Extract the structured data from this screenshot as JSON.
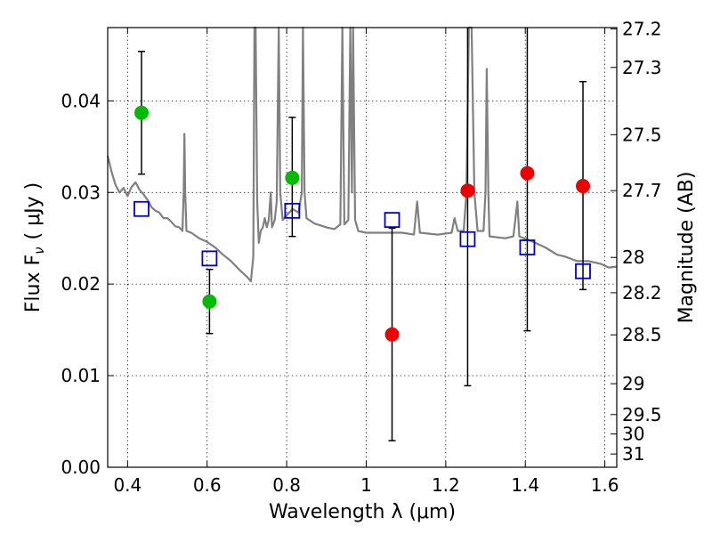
{
  "chart_data": {
    "type": "scatter",
    "xlabel": "Wavelength  λ (μm)",
    "ylabel": "Flux  F",
    "ylabel_sub": "ν",
    "ylabel_unit": "( μJy )",
    "y2label": "Magnitude (AB)",
    "xlim": [
      0.35,
      1.63
    ],
    "ylim": [
      0.0,
      0.048
    ],
    "grid": true,
    "x_ticks": [
      0.4,
      0.6,
      0.8,
      1.0,
      1.2,
      1.4,
      1.6
    ],
    "x_tick_labels": [
      "0.4",
      "0.6",
      "0.8",
      "1",
      "1.2",
      "1.4",
      "1.6"
    ],
    "y_ticks": [
      0.0,
      0.01,
      0.02,
      0.03,
      0.04
    ],
    "y_tick_labels": [
      "0.00",
      "0.01",
      "0.02",
      "0.03",
      "0.04"
    ],
    "mag_ticks": [
      27.2,
      27.3,
      27.5,
      27.7,
      28,
      28.2,
      28.5,
      29,
      29.5,
      30,
      31
    ],
    "mag_tick_labels": [
      "27.2",
      "27.3",
      "27.5",
      "27.7",
      "28",
      "28.2",
      "28.5",
      "29",
      "29.5",
      "30",
      "31"
    ],
    "colors": {
      "green": "#00bb00",
      "red": "#ee0000",
      "model_box": "#0000cc",
      "template": "#808080",
      "errorbar": "#000000"
    },
    "series": [
      {
        "marker": "green-circle",
        "points": [
          {
            "x": 0.435,
            "y": 0.0387,
            "ylo": 0.032,
            "yhi": 0.0454
          },
          {
            "x": 0.606,
            "y": 0.0181,
            "ylo": 0.0146,
            "yhi": 0.0216
          },
          {
            "x": 0.814,
            "y": 0.0316,
            "ylo": 0.0252,
            "yhi": 0.0382
          }
        ]
      },
      {
        "marker": "red-circle",
        "points": [
          {
            "x": 1.065,
            "y": 0.0145,
            "ylo": 0.0029,
            "yhi": 0.0261
          },
          {
            "x": 1.255,
            "y": 0.0302,
            "ylo": 0.0089,
            "yhi": 0.05
          },
          {
            "x": 1.405,
            "y": 0.0321,
            "ylo": 0.0149,
            "yhi": 0.05
          },
          {
            "x": 1.545,
            "y": 0.0307,
            "ylo": 0.0194,
            "yhi": 0.0421
          }
        ]
      },
      {
        "marker": "blue-square",
        "points": [
          {
            "x": 0.435,
            "y": 0.0282
          },
          {
            "x": 0.606,
            "y": 0.0228
          },
          {
            "x": 0.814,
            "y": 0.028
          },
          {
            "x": 1.065,
            "y": 0.027
          },
          {
            "x": 1.255,
            "y": 0.0249
          },
          {
            "x": 1.405,
            "y": 0.024
          },
          {
            "x": 1.545,
            "y": 0.0214
          }
        ]
      }
    ],
    "template_spectrum": [
      [
        0.35,
        0.034
      ],
      [
        0.36,
        0.0322
      ],
      [
        0.37,
        0.0308
      ],
      [
        0.38,
        0.03
      ],
      [
        0.39,
        0.0305
      ],
      [
        0.4,
        0.0296
      ],
      [
        0.41,
        0.0306
      ],
      [
        0.42,
        0.0311
      ],
      [
        0.43,
        0.0303
      ],
      [
        0.44,
        0.0298
      ],
      [
        0.45,
        0.0292
      ],
      [
        0.46,
        0.0284
      ],
      [
        0.47,
        0.028
      ],
      [
        0.48,
        0.0278
      ],
      [
        0.49,
        0.0272
      ],
      [
        0.5,
        0.0272
      ],
      [
        0.51,
        0.0268
      ],
      [
        0.52,
        0.0263
      ],
      [
        0.53,
        0.0262
      ],
      [
        0.538,
        0.0258
      ],
      [
        0.541,
        0.03
      ],
      [
        0.543,
        0.0364
      ],
      [
        0.545,
        0.03
      ],
      [
        0.548,
        0.0258
      ],
      [
        0.56,
        0.0256
      ],
      [
        0.58,
        0.025
      ],
      [
        0.6,
        0.0246
      ],
      [
        0.62,
        0.024
      ],
      [
        0.64,
        0.0232
      ],
      [
        0.66,
        0.0225
      ],
      [
        0.68,
        0.0216
      ],
      [
        0.7,
        0.0208
      ],
      [
        0.71,
        0.0203
      ],
      [
        0.716,
        0.023
      ],
      [
        0.719,
        0.0482
      ],
      [
        0.722,
        0.0482
      ],
      [
        0.726,
        0.029
      ],
      [
        0.73,
        0.0245
      ],
      [
        0.735,
        0.0258
      ],
      [
        0.74,
        0.0262
      ],
      [
        0.745,
        0.0272
      ],
      [
        0.75,
        0.0262
      ],
      [
        0.755,
        0.027
      ],
      [
        0.76,
        0.03
      ],
      [
        0.763,
        0.0262
      ],
      [
        0.77,
        0.027
      ],
      [
        0.775,
        0.029
      ],
      [
        0.78,
        0.048
      ],
      [
        0.784,
        0.03
      ],
      [
        0.79,
        0.027
      ],
      [
        0.8,
        0.0275
      ],
      [
        0.815,
        0.0282
      ],
      [
        0.83,
        0.0278
      ],
      [
        0.838,
        0.03
      ],
      [
        0.841,
        0.0482
      ],
      [
        0.845,
        0.03
      ],
      [
        0.85,
        0.0272
      ],
      [
        0.87,
        0.0266
      ],
      [
        0.9,
        0.0262
      ],
      [
        0.92,
        0.026
      ],
      [
        0.935,
        0.0265
      ],
      [
        0.94,
        0.0482
      ],
      [
        0.945,
        0.0265
      ],
      [
        0.955,
        0.027
      ],
      [
        0.96,
        0.0482
      ],
      [
        0.964,
        0.03
      ],
      [
        0.967,
        0.0482
      ],
      [
        0.972,
        0.027
      ],
      [
        0.98,
        0.0258
      ],
      [
        1.0,
        0.0256
      ],
      [
        1.05,
        0.0256
      ],
      [
        1.09,
        0.0256
      ],
      [
        1.12,
        0.0254
      ],
      [
        1.128,
        0.029
      ],
      [
        1.135,
        0.0256
      ],
      [
        1.18,
        0.0254
      ],
      [
        1.215,
        0.0256
      ],
      [
        1.222,
        0.0272
      ],
      [
        1.23,
        0.0258
      ],
      [
        1.245,
        0.0258
      ],
      [
        1.252,
        0.03
      ],
      [
        1.258,
        0.0482
      ],
      [
        1.265,
        0.0482
      ],
      [
        1.272,
        0.03
      ],
      [
        1.28,
        0.0258
      ],
      [
        1.295,
        0.0258
      ],
      [
        1.3,
        0.03
      ],
      [
        1.303,
        0.0435
      ],
      [
        1.307,
        0.03
      ],
      [
        1.31,
        0.0252
      ],
      [
        1.35,
        0.025
      ],
      [
        1.37,
        0.0252
      ],
      [
        1.375,
        0.027
      ],
      [
        1.38,
        0.029
      ],
      [
        1.385,
        0.0252
      ],
      [
        1.42,
        0.0246
      ],
      [
        1.45,
        0.024
      ],
      [
        1.48,
        0.0232
      ],
      [
        1.5,
        0.023
      ],
      [
        1.53,
        0.0225
      ],
      [
        1.56,
        0.0225
      ],
      [
        1.59,
        0.0222
      ],
      [
        1.61,
        0.0218
      ],
      [
        1.63,
        0.0219
      ]
    ]
  }
}
